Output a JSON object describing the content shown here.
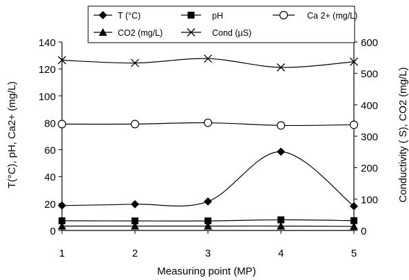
{
  "chart_data": {
    "type": "line",
    "x": [
      1,
      2,
      3,
      4,
      5
    ],
    "xlabel": "Measuring point (MP)",
    "ylabel_left": "T(°C),  pH,  Ca2+ (mg/L)",
    "ylabel_right": "Conductivity  ( S), CO2 (mg/L)",
    "ylim_left": [
      0,
      140
    ],
    "ylim_right": [
      0,
      600
    ],
    "yticks_left": [
      "0",
      "20",
      "40",
      "60",
      "80",
      "100",
      "120",
      "140"
    ],
    "yticks_right": [
      "0",
      "100",
      "200",
      "300",
      "400",
      "500",
      "600"
    ],
    "xticks": [
      "1",
      "2",
      "3",
      "4",
      "5"
    ],
    "grid": false,
    "legend_placement": "top",
    "series": [
      {
        "name": "T (°C)",
        "axis": "left",
        "marker": "diamond",
        "values": [
          18.5,
          19.5,
          21.5,
          58.5,
          18
        ]
      },
      {
        "name": "pH",
        "axis": "left",
        "marker": "square",
        "values": [
          7.2,
          7.1,
          7.1,
          7.9,
          7.3
        ]
      },
      {
        "name": "Ca 2+  (mg/L)",
        "axis": "left",
        "marker": "circle-open",
        "values": [
          79,
          79,
          80,
          78,
          78.5
        ]
      },
      {
        "name": "CO2  (mg/L)",
        "axis": "right",
        "marker": "triangle",
        "values": [
          14,
          14,
          14,
          14,
          13
        ]
      },
      {
        "name": "Cond (µS)",
        "axis": "right",
        "marker": "cross",
        "values": [
          542,
          533,
          547,
          519,
          537
        ]
      }
    ]
  }
}
